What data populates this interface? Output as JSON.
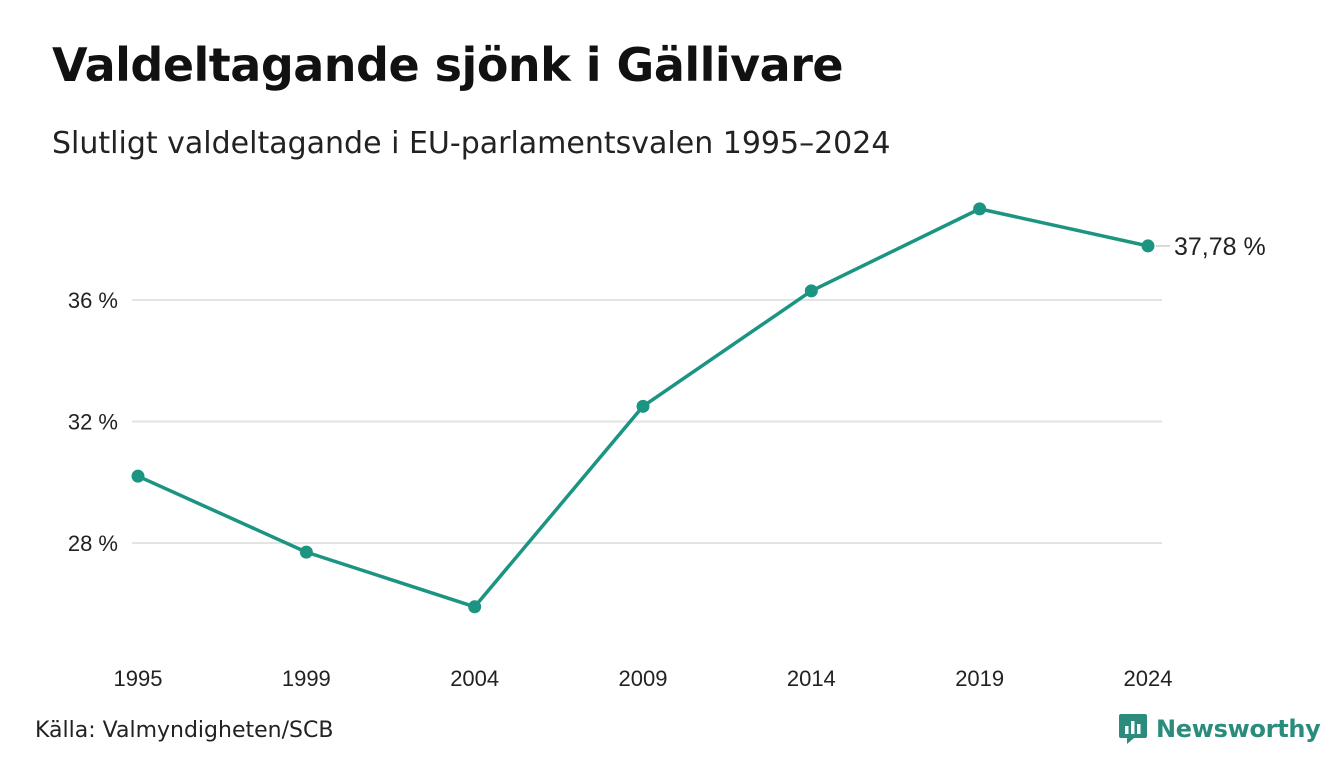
{
  "header": {
    "title": "Valdeltagande sjönk i Gällivare",
    "subtitle": "Slutligt valdeltagande i EU-parlamentsvalen 1995–2024"
  },
  "footer": {
    "source": "Källa: Valmyndigheten/SCB",
    "brand": "Newsworthy"
  },
  "colors": {
    "line": "#1b9482",
    "grid": "#e3e3e3",
    "brand": "#2b8c7d"
  },
  "chart_data": {
    "type": "line",
    "title": "Valdeltagande sjönk i Gällivare",
    "subtitle": "Slutligt valdeltagande i EU-parlamentsvalen 1995–2024",
    "xlabel": "",
    "ylabel": "",
    "x": [
      "1995",
      "1999",
      "2004",
      "2009",
      "2014",
      "2019",
      "2024"
    ],
    "series": [
      {
        "values": [
          30.2,
          27.7,
          25.9,
          32.5,
          36.3,
          39.0,
          37.78
        ]
      }
    ],
    "yticks": [
      28,
      32,
      36
    ],
    "ytick_labels": [
      "28 %",
      "32 %",
      "36 %"
    ],
    "ylim": [
      24.5,
      40.5
    ],
    "grid": "horizontal",
    "end_label": "37,78 %"
  }
}
